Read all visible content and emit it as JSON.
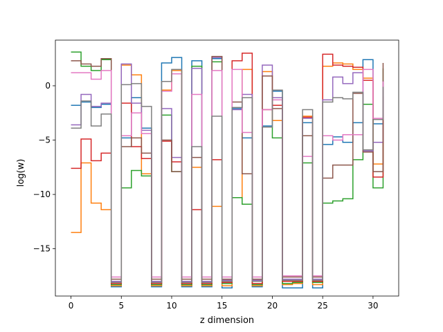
{
  "chart_data": {
    "type": "line",
    "drawstyle": "steps-post",
    "title": "",
    "xlabel": "z dimension",
    "ylabel": "log(w)",
    "xlim": [
      -1.55,
      32.55
    ],
    "ylim": [
      -19.35,
      4.2
    ],
    "xticks": [
      0,
      5,
      10,
      15,
      20,
      25,
      30
    ],
    "xtick_labels": [
      "0",
      "5",
      "10",
      "15",
      "20",
      "25",
      "30"
    ],
    "yticks": [
      0,
      -5,
      -10,
      -15
    ],
    "ytick_labels": [
      "0",
      "−5",
      "−10",
      "−15"
    ],
    "grid": false,
    "legend": "none",
    "x": [
      0,
      1,
      2,
      3,
      4,
      5,
      6,
      7,
      8,
      9,
      10,
      11,
      12,
      13,
      14,
      15,
      16,
      17,
      18,
      19,
      20,
      21,
      22,
      23,
      24,
      25,
      26,
      27,
      28,
      29,
      30,
      31
    ],
    "series": [
      {
        "color": "#1f77b4",
        "values": [
          -1.8,
          -1.5,
          -2.0,
          -1.7,
          -18.5,
          -4.8,
          -1.1,
          -3.9,
          -18.5,
          2.1,
          2.6,
          -18.5,
          2.3,
          -18.5,
          2.5,
          -18.6,
          -2.1,
          -4.8,
          -18.5,
          -3.7,
          -0.5,
          -18.6,
          -18.6,
          -3.4,
          -18.6,
          -5.4,
          -4.7,
          -5.2,
          -3.4,
          2.4,
          -3.5,
          -2.6
        ]
      },
      {
        "color": "#ff7f0e",
        "values": [
          -13.5,
          -7.1,
          -10.8,
          -11.4,
          -18.4,
          1.9,
          1.0,
          -8.1,
          -18.4,
          -0.4,
          1.4,
          -18.4,
          -7.5,
          -18.4,
          -11.1,
          -18.4,
          -10.3,
          1.5,
          -18.4,
          1.3,
          -3.2,
          -18.3,
          -18.2,
          -2.8,
          -18.3,
          1.8,
          2.1,
          2.0,
          1.5,
          0.7,
          -7.2,
          -2.9
        ]
      },
      {
        "color": "#2ca02c",
        "values": [
          3.1,
          1.8,
          1.4,
          2.4,
          -18.3,
          -9.4,
          -7.8,
          -8.3,
          -18.3,
          -2.7,
          -7.9,
          -18.3,
          1.8,
          -18.3,
          2.2,
          -18.2,
          -10.3,
          -10.9,
          -18.3,
          -3.8,
          -4.8,
          -18.2,
          -18.1,
          -7.1,
          -18.1,
          -10.8,
          -10.6,
          -10.4,
          -6.8,
          -1.7,
          -9.4,
          1.6
        ]
      },
      {
        "color": "#d62728",
        "values": [
          -7.6,
          -4.9,
          -6.9,
          -6.2,
          -18.2,
          -1.6,
          -5.6,
          -6.7,
          -18.2,
          -5.1,
          -7.0,
          -18.2,
          -11.4,
          -18.2,
          -6.8,
          -18.1,
          2.3,
          3.0,
          -18.2,
          -2.2,
          -1.8,
          -18.0,
          -18.0,
          -2.9,
          -18.0,
          2.9,
          1.9,
          1.8,
          1.7,
          0.5,
          -8.4,
          -1.0
        ]
      },
      {
        "color": "#9467bd",
        "values": [
          -3.6,
          -0.8,
          -1.9,
          -1.6,
          -18.0,
          2.0,
          -1.6,
          -4.1,
          -18.0,
          -2.1,
          -6.6,
          -18.0,
          1.6,
          -18.0,
          2.6,
          -17.9,
          -2.2,
          -0.8,
          -17.9,
          1.9,
          -1.1,
          -17.8,
          -17.8,
          -3.0,
          -17.8,
          -1.3,
          0.8,
          0.2,
          1.2,
          -6.0,
          -5.2,
          0.5
        ]
      },
      {
        "color": "#8c564b",
        "values": [
          2.3,
          2.0,
          1.8,
          2.5,
          -17.8,
          -5.6,
          -4.8,
          -6.2,
          -17.8,
          -5.0,
          -7.9,
          -17.8,
          -6.6,
          -17.8,
          2.7,
          -17.8,
          -1.5,
          -8.1,
          -17.8,
          0.9,
          -2.1,
          -17.6,
          -17.6,
          -4.6,
          -17.6,
          -8.5,
          -7.3,
          -7.3,
          -0.7,
          -6.1,
          -7.9,
          2.1
        ]
      },
      {
        "color": "#e377c2",
        "values": [
          1.2,
          1.2,
          0.6,
          1.4,
          -17.6,
          -4.6,
          -2.5,
          -4.4,
          -17.6,
          -0.5,
          1.1,
          -17.6,
          -0.8,
          -17.6,
          1.4,
          -17.6,
          1.5,
          -4.3,
          -17.6,
          -2.2,
          -1.3,
          -17.5,
          -17.5,
          -6.5,
          -17.5,
          -4.6,
          -5.0,
          -4.5,
          -4.5,
          1.5,
          -3.0,
          0.4
        ]
      },
      {
        "color": "#7f7f7f",
        "values": [
          -3.9,
          -1.4,
          -3.7,
          -2.6,
          -18.1,
          0.1,
          0.2,
          -1.9,
          -18.1,
          0.4,
          1.5,
          -18.1,
          -5.6,
          -18.1,
          -2.8,
          -18.0,
          -2.0,
          -1.1,
          -18.0,
          -3.8,
          -0.4,
          -17.9,
          -17.9,
          -2.2,
          -17.9,
          -1.5,
          -1.1,
          -1.2,
          -0.6,
          -5.9,
          -3.1,
          -0.1
        ]
      }
    ]
  }
}
